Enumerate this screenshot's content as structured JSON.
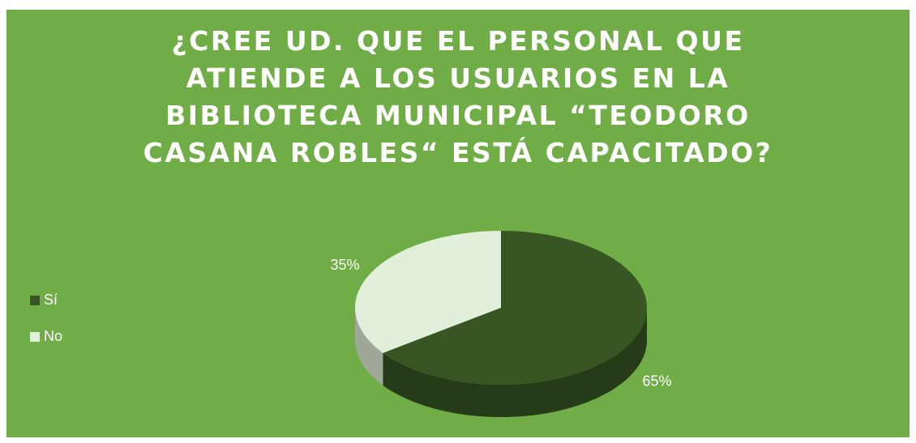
{
  "chart_data": {
    "type": "pie",
    "title": "¿CREE UD. QUE EL PERSONAL QUE ATIENDE A LOS USUARIOS EN LA BIBLIOTECA MUNICIPAL “TEODORO CASANA ROBLES“ ESTÁ CAPACITADO?",
    "categories": [
      "Sí",
      "No"
    ],
    "values": [
      65,
      35
    ],
    "value_labels": [
      "65%",
      "35%"
    ],
    "colors": [
      "#375623",
      "#e2efda"
    ],
    "legend": "left"
  }
}
